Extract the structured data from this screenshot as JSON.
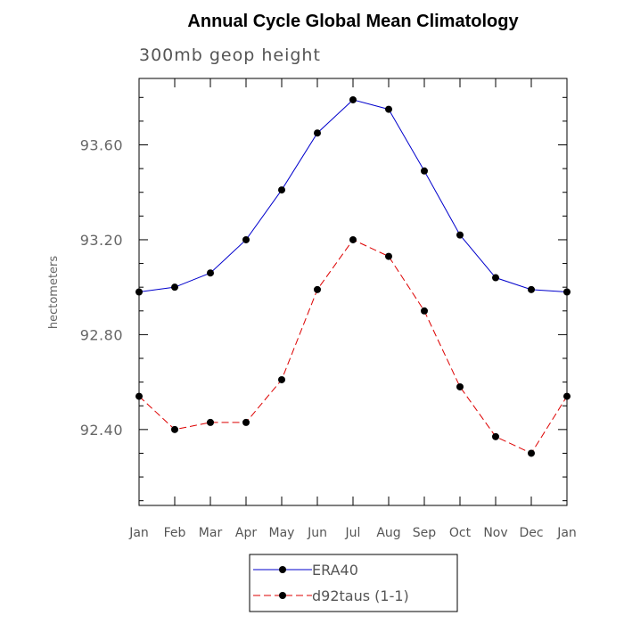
{
  "chart_data": {
    "type": "line",
    "title": "Annual Cycle Global Mean Climatology",
    "subtitle": "300mb geop height",
    "xlabel": "",
    "ylabel": "hectometers",
    "categories": [
      "Jan",
      "Feb",
      "Mar",
      "Apr",
      "May",
      "Jun",
      "Jul",
      "Aug",
      "Sep",
      "Oct",
      "Nov",
      "Dec",
      "Jan"
    ],
    "ylim": [
      92.08,
      93.88
    ],
    "yticks_major": [
      "92.40",
      "92.80",
      "93.20",
      "93.60"
    ],
    "grid": false,
    "legend_placement": "bottom-center",
    "series": [
      {
        "name": "ERA40",
        "color": "#0000cc",
        "dash": "solid",
        "marker": "filled-circle",
        "values": [
          92.98,
          93.0,
          93.06,
          93.2,
          93.41,
          93.65,
          93.79,
          93.75,
          93.49,
          93.22,
          93.04,
          92.99,
          92.98
        ]
      },
      {
        "name": "d92taus (1-1)",
        "color": "#dd0000",
        "dash": "dashed",
        "marker": "filled-circle",
        "values": [
          92.54,
          92.4,
          92.43,
          92.43,
          92.61,
          92.99,
          93.2,
          93.13,
          92.9,
          92.58,
          92.37,
          92.3,
          92.54
        ]
      }
    ]
  }
}
